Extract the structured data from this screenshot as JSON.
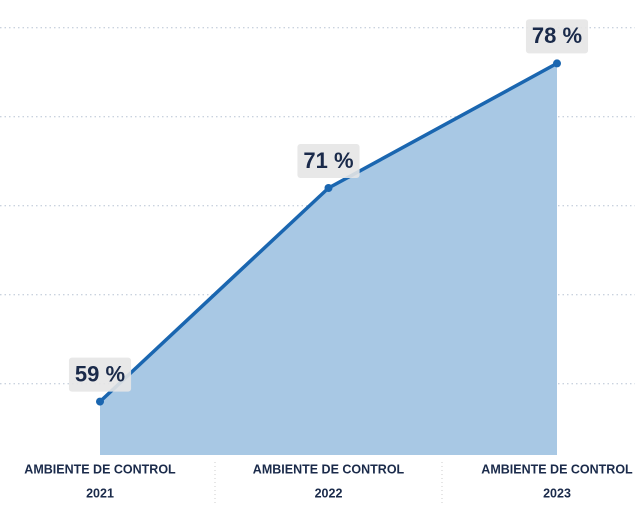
{
  "chart_data": {
    "type": "area",
    "categories": [
      [
        "AMBIENTE DE CONTROL",
        "2021"
      ],
      [
        "AMBIENTE DE CONTROL",
        "2022"
      ],
      [
        "AMBIENTE DE CONTROL",
        "2023"
      ]
    ],
    "values": [
      59,
      71,
      78
    ],
    "value_labels": [
      "59 %",
      "71 %",
      "78 %"
    ],
    "color": "#1a66b0",
    "fill": "#a8c8e4",
    "ylim": [
      56,
      81
    ],
    "yticks": [
      60,
      65,
      70,
      75,
      80
    ],
    "grid": true
  }
}
